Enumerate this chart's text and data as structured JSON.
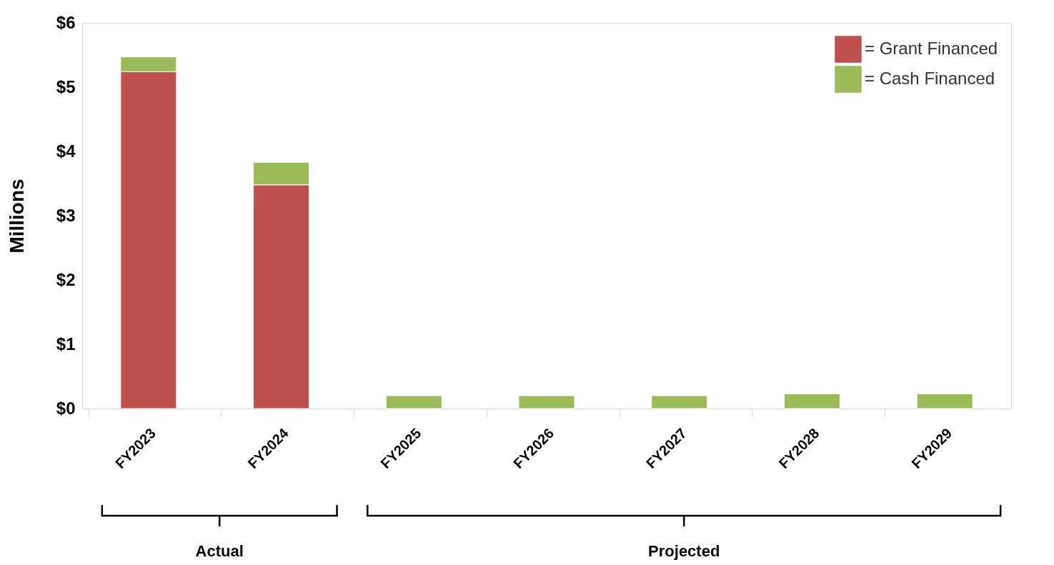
{
  "chart_data": {
    "type": "bar",
    "stacked": true,
    "categories": [
      "FY2023",
      "FY2024",
      "FY2025",
      "FY2026",
      "FY2027",
      "FY2028",
      "FY2029"
    ],
    "series": [
      {
        "name": "= Grant Financed",
        "color": "#c0504d",
        "values": [
          5.24,
          3.48,
          0,
          0,
          0,
          0,
          0
        ]
      },
      {
        "name": "= Cash Financed",
        "color": "#9bbb59",
        "values": [
          0.23,
          0.35,
          0.2,
          0.2,
          0.2,
          0.23,
          0.23
        ]
      }
    ],
    "ylabel": "Millions",
    "ylim": [
      0,
      6
    ],
    "yticks": [
      {
        "value": 0,
        "label": "$0"
      },
      {
        "value": 1,
        "label": "$1"
      },
      {
        "value": 2,
        "label": "$2"
      },
      {
        "value": 3,
        "label": "$3"
      },
      {
        "value": 4,
        "label": "$4"
      },
      {
        "value": 5,
        "label": "$5"
      },
      {
        "value": 6,
        "label": "$6"
      }
    ],
    "legend": "top right",
    "grid": false,
    "annotations": [
      "Actual",
      "Projected"
    ]
  }
}
